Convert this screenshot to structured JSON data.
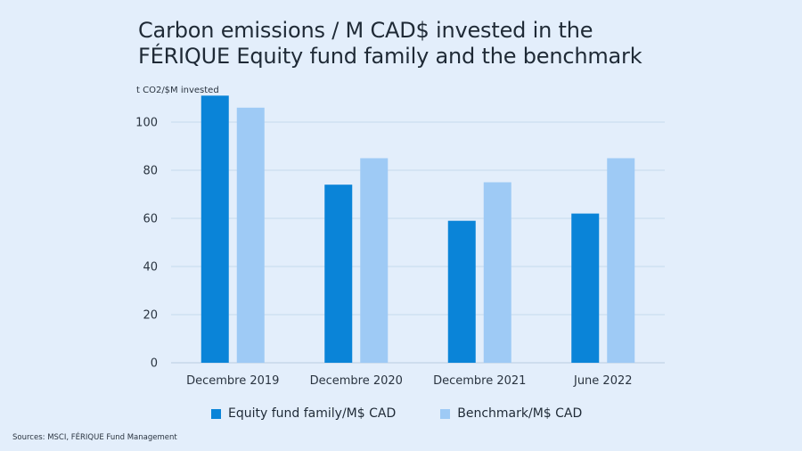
{
  "colors": {
    "background": "#e3eefb",
    "equity": "#0a84d8",
    "benchmark": "#9ecaf5",
    "grid": "#c6d9ee"
  },
  "sources": "Sources: MSCI, FÉRIQUE Fund Management",
  "chart_data": {
    "type": "bar",
    "title_line1": "Carbon emissions / M CAD$ invested in the",
    "title_line2": "FÉRIQUE Equity fund family and the benchmark",
    "ylabel": "t CO2/$M invested",
    "xlabel": "",
    "ylim": [
      0,
      110
    ],
    "yticks": [
      0,
      20,
      40,
      60,
      80,
      100
    ],
    "grid": true,
    "legend_position": "bottom",
    "categories": [
      "Decembre 2019",
      "Decembre 2020",
      "Decembre 2021",
      "June 2022"
    ],
    "series": [
      {
        "name": "Equity fund family/M$ CAD",
        "values": [
          111,
          74,
          59,
          62
        ],
        "color": "#0a84d8"
      },
      {
        "name": "Benchmark/M$ CAD",
        "values": [
          106,
          85,
          75,
          85
        ],
        "color": "#9ecaf5"
      }
    ]
  }
}
